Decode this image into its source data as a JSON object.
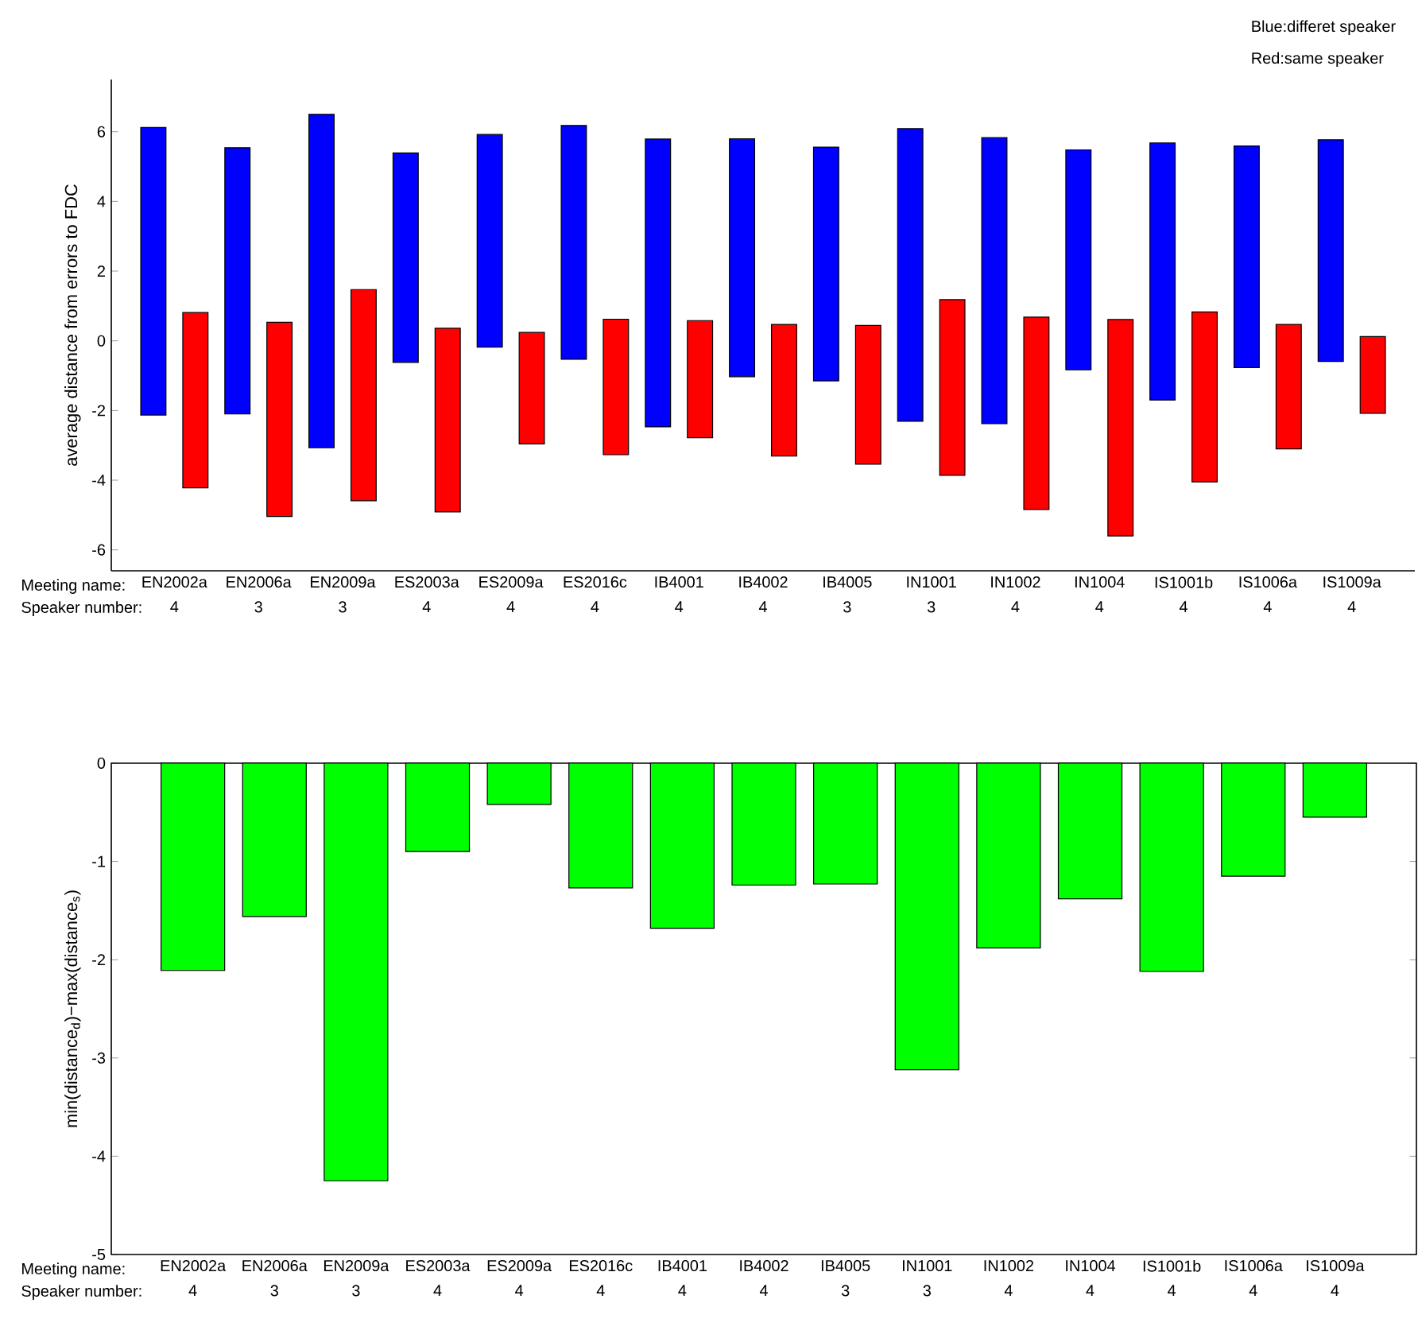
{
  "chart_data": [
    {
      "type": "bar",
      "ylabel": "average distance from errors to FDC",
      "categories": [
        "EN2002a",
        "EN2006a",
        "EN2009a",
        "ES2003a",
        "ES2009a",
        "ES2016c",
        "IB4001",
        "IB4002",
        "IB4005",
        "IN1001",
        "IN1002",
        "IN1004",
        "IS1001b",
        "IS1006a",
        "IS1009a"
      ],
      "series": [
        {
          "color": "#0000ff",
          "base": [
            -2.13,
            -2.1,
            -3.07,
            -0.62,
            -0.18,
            -0.53,
            -2.47,
            -1.03,
            -1.15,
            -2.31,
            -2.38,
            -0.83,
            -1.7,
            -0.77,
            -0.59
          ],
          "values": [
            8.25,
            7.64,
            9.57,
            6.01,
            6.1,
            6.71,
            8.26,
            6.83,
            6.71,
            8.4,
            8.21,
            6.31,
            7.38,
            6.36,
            6.36
          ]
        },
        {
          "color": "#ff0000",
          "base": [
            -4.22,
            -5.04,
            -4.59,
            -4.91,
            -2.96,
            -3.27,
            -2.78,
            -3.31,
            -3.54,
            -3.86,
            -4.84,
            -5.6,
            -4.05,
            -3.1,
            -2.08
          ],
          "values": [
            5.03,
            5.57,
            6.06,
            5.27,
            3.2,
            3.89,
            3.36,
            3.78,
            3.98,
            5.04,
            5.52,
            6.21,
            4.88,
            3.57,
            2.2
          ]
        }
      ],
      "ylim": [
        -6.6,
        7.5
      ],
      "yticks": [
        -6,
        -4,
        -2,
        0,
        2,
        4,
        6
      ],
      "annotations": [
        "Meeting name:",
        "Speaker number:",
        "4",
        "3",
        "3",
        "4",
        "4",
        "4",
        "4",
        "4",
        "3",
        "3",
        "4",
        "4",
        "4",
        "4",
        "4",
        "Blue:differet speaker",
        "Red:same speaker"
      ]
    },
    {
      "type": "bar",
      "ylabel": "min(distance$_{d}$)−max(distance$_{s}$)",
      "categories": [
        "EN2002a",
        "EN2006a",
        "EN2009a",
        "ES2003a",
        "ES2009a",
        "ES2016c",
        "IB4001",
        "IB4002",
        "IB4005",
        "IN1001",
        "IN1002",
        "IN1004",
        "IS1001b",
        "IS1006a",
        "IS1009a"
      ],
      "color": "#00ff00",
      "values": [
        -2.11,
        -1.56,
        -4.25,
        -0.9,
        -0.42,
        -1.27,
        -1.68,
        -1.24,
        -1.23,
        -3.12,
        -1.88,
        -1.38,
        -2.12,
        -1.15,
        -0.55
      ],
      "ylim": [
        -5,
        0
      ],
      "yticks": [
        -5,
        -4,
        -3,
        -2,
        -1,
        0
      ],
      "annotations": [
        "Meeting name:",
        "Speaker number:",
        "4",
        "3",
        "3",
        "4",
        "4",
        "4",
        "4",
        "4",
        "3",
        "3",
        "4",
        "4",
        "4",
        "4",
        "4"
      ]
    }
  ]
}
